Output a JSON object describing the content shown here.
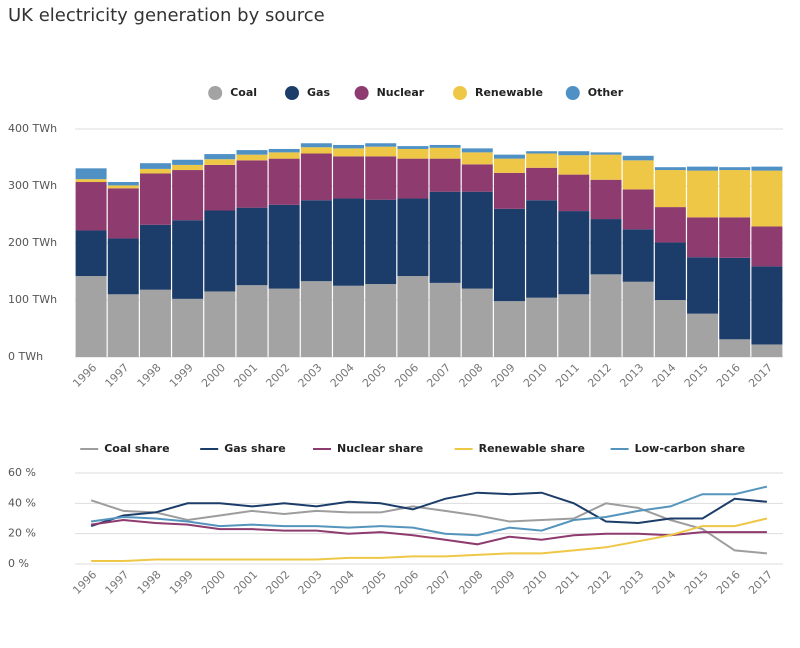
{
  "chart_data": [
    {
      "type": "bar",
      "stacked": true,
      "title": "UK electricity generation by source",
      "categories": [
        "1996",
        "1997",
        "1998",
        "1999",
        "2000",
        "2001",
        "2002",
        "2003",
        "2004",
        "2005",
        "2006",
        "2007",
        "2008",
        "2009",
        "2010",
        "2011",
        "2012",
        "2013",
        "2014",
        "2015",
        "2016",
        "2017"
      ],
      "series": [
        {
          "name": "Coal",
          "color": "#a3a3a3",
          "values": [
            142,
            110,
            118,
            102,
            115,
            126,
            120,
            133,
            125,
            128,
            142,
            130,
            120,
            98,
            104,
            110,
            145,
            132,
            100,
            76,
            31,
            22
          ]
        },
        {
          "name": "Gas",
          "color": "#1c3d6a",
          "values": [
            80,
            98,
            114,
            138,
            142,
            136,
            147,
            142,
            153,
            148,
            136,
            160,
            170,
            162,
            171,
            146,
            97,
            92,
            101,
            99,
            143,
            137
          ]
        },
        {
          "name": "Nuclear",
          "color": "#8e3b6f",
          "values": [
            85,
            88,
            90,
            88,
            80,
            83,
            81,
            82,
            74,
            76,
            70,
            58,
            48,
            63,
            57,
            64,
            69,
            70,
            62,
            70,
            71,
            70
          ]
        },
        {
          "name": "Renewable",
          "color": "#efc746",
          "values": [
            5,
            5,
            8,
            9,
            10,
            10,
            11,
            11,
            14,
            17,
            17,
            19,
            21,
            25,
            25,
            34,
            44,
            51,
            65,
            82,
            83,
            98
          ]
        },
        {
          "name": "Other",
          "color": "#4f91c5",
          "values": [
            19,
            6,
            10,
            9,
            9,
            8,
            6,
            7,
            6,
            6,
            5,
            5,
            7,
            7,
            4,
            7,
            4,
            8,
            5,
            7,
            5,
            7
          ]
        }
      ],
      "ylim": [
        0,
        400
      ],
      "yticks": [
        {
          "value": 0,
          "label": "0 TWh"
        },
        {
          "value": 100,
          "label": "100 TWh"
        },
        {
          "value": 200,
          "label": "200 TWh"
        },
        {
          "value": 300,
          "label": "300 TWh"
        },
        {
          "value": 400,
          "label": "400 TWh"
        }
      ],
      "grid": true
    },
    {
      "type": "line",
      "categories": [
        "1996",
        "1997",
        "1998",
        "1999",
        "2000",
        "2001",
        "2002",
        "2003",
        "2004",
        "2005",
        "2006",
        "2007",
        "2008",
        "2009",
        "2010",
        "2011",
        "2012",
        "2013",
        "2014",
        "2015",
        "2016",
        "2017"
      ],
      "series": [
        {
          "name": "Coal share",
          "color": "#9d9d9d",
          "values": [
            42,
            35,
            34,
            29,
            32,
            35,
            33,
            35,
            34,
            34,
            38,
            35,
            32,
            28,
            29,
            30,
            40,
            37,
            29,
            23,
            9,
            7
          ]
        },
        {
          "name": "Gas share",
          "color": "#1c3d6a",
          "values": [
            25,
            32,
            34,
            40,
            40,
            38,
            40,
            38,
            41,
            40,
            36,
            43,
            47,
            46,
            47,
            40,
            28,
            27,
            30,
            30,
            43,
            41
          ]
        },
        {
          "name": "Nuclear share",
          "color": "#8e3b6f",
          "values": [
            26,
            29,
            27,
            26,
            23,
            23,
            22,
            22,
            20,
            21,
            19,
            16,
            13,
            18,
            16,
            19,
            20,
            20,
            19,
            21,
            21,
            21
          ]
        },
        {
          "name": "Renewable share",
          "color": "#efc746",
          "values": [
            2,
            2,
            3,
            3,
            3,
            3,
            3,
            3,
            4,
            4,
            5,
            5,
            6,
            7,
            7,
            9,
            11,
            15,
            19,
            25,
            25,
            30
          ]
        },
        {
          "name": "Low-carbon share",
          "color": "#5595bd",
          "values": [
            28,
            31,
            30,
            28,
            25,
            26,
            25,
            25,
            24,
            25,
            24,
            20,
            19,
            24,
            22,
            29,
            31,
            35,
            38,
            46,
            46,
            51
          ]
        }
      ],
      "ylim": [
        0,
        60
      ],
      "yticks": [
        {
          "value": 0,
          "label": "0 %"
        },
        {
          "value": 20,
          "label": "20 %"
        },
        {
          "value": 40,
          "label": "40 %"
        },
        {
          "value": 60,
          "label": "60 %"
        }
      ],
      "grid": true
    }
  ]
}
